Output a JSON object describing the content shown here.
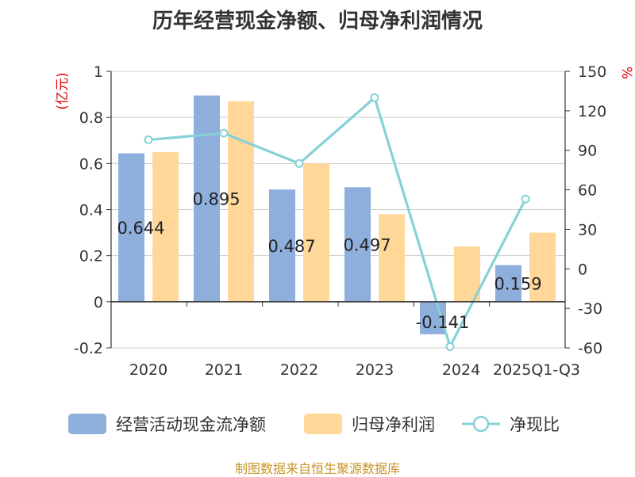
{
  "chart_data": {
    "type": "bar",
    "title": "历年经营现金净额、归母净利润情况",
    "categories": [
      "2020",
      "2021",
      "2022",
      "2023",
      "2024",
      "2025Q1-Q3"
    ],
    "series": [
      {
        "name": "经营活动现金流净额",
        "type": "bar",
        "axis": "left",
        "color": "#8eaedc",
        "values": [
          0.644,
          0.895,
          0.487,
          0.497,
          -0.141,
          0.159
        ],
        "data_labels": [
          "0.644",
          "0.895",
          "0.487",
          "0.497",
          "-0.141",
          "0.159"
        ]
      },
      {
        "name": "归母净利润",
        "type": "bar",
        "axis": "left",
        "color": "#ffd899",
        "values": [
          0.65,
          0.87,
          0.6,
          0.38,
          0.24,
          0.3
        ]
      },
      {
        "name": "净现比",
        "type": "line",
        "axis": "right",
        "color": "#86d1d7",
        "values": [
          98,
          103,
          80,
          130,
          -59,
          53
        ]
      }
    ],
    "left_axis": {
      "label": "(亿元)",
      "min": -0.2,
      "max": 1,
      "ticks": [
        "-0.2",
        "0",
        "0.2",
        "0.4",
        "0.6",
        "0.8",
        "1"
      ]
    },
    "right_axis": {
      "label": "%",
      "min": -60,
      "max": 150,
      "ticks": [
        "-60",
        "-30",
        "0",
        "30",
        "60",
        "90",
        "120",
        "150"
      ]
    },
    "grid": true,
    "legend_position": "bottom"
  },
  "source": "制图数据来自恒生聚源数据库"
}
